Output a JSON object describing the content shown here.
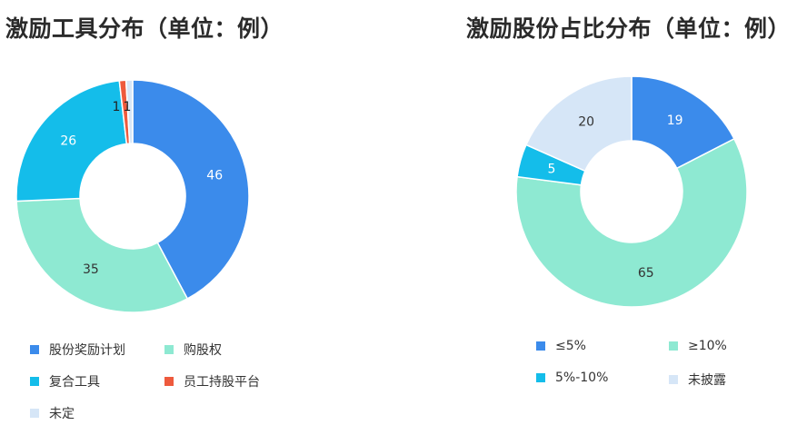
{
  "chart_data": [
    {
      "type": "pie",
      "title": "激励工具分布（单位：例）",
      "categories": [
        "股份奖励计划",
        "购股权",
        "复合工具",
        "员工持股平台",
        "未定"
      ],
      "values": [
        46,
        35,
        26,
        1,
        1
      ],
      "colors": [
        "#3b8beb",
        "#8ee9d2",
        "#14bdea",
        "#ee5a3d",
        "#d6e6f7"
      ],
      "label_colors": [
        "#ffffff",
        "#333333",
        "#ffffff",
        "#222222",
        "#222222"
      ],
      "legend_position": "bottom"
    },
    {
      "type": "pie",
      "title": "激励股份占比分布（单位：例）",
      "categories": [
        "≤5%",
        "≥10%",
        "5%-10%",
        "未披露"
      ],
      "values": [
        19,
        65,
        5,
        20
      ],
      "colors": [
        "#3b8beb",
        "#8ee9d2",
        "#14bdea",
        "#d6e6f7"
      ],
      "label_colors": [
        "#ffffff",
        "#333333",
        "#ffffff",
        "#333333"
      ],
      "legend_position": "bottom"
    }
  ]
}
